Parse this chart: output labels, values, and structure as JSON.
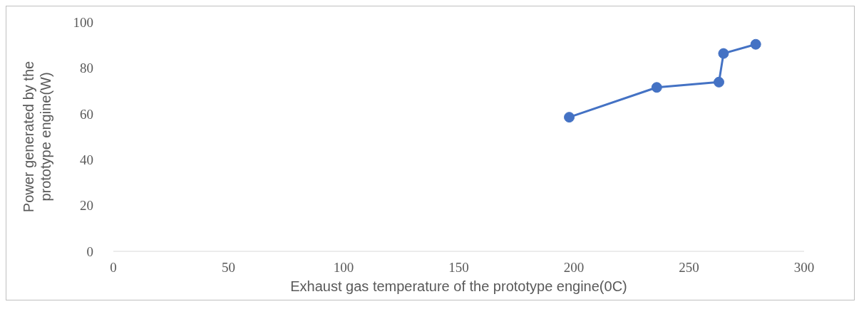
{
  "chart_data": {
    "type": "line",
    "xlabel": "Exhaust gas temperature of the prototype engine(0C)",
    "ylabel": "Power generated by the prototype engine(W)",
    "x": [
      198,
      236,
      263,
      265,
      279
    ],
    "series": [
      {
        "color": "#4472c4",
        "values": [
          58.5,
          71.5,
          73.8,
          86.3,
          90.3
        ]
      }
    ],
    "xlim": [
      0,
      300
    ],
    "xticks": [
      0,
      50,
      100,
      150,
      200,
      250,
      300
    ],
    "ylim": [
      0,
      100
    ],
    "yticks": [
      0,
      20,
      40,
      60,
      80,
      100
    ],
    "grid": false,
    "legend": false,
    "marker": "circle",
    "line_style": "solid"
  }
}
